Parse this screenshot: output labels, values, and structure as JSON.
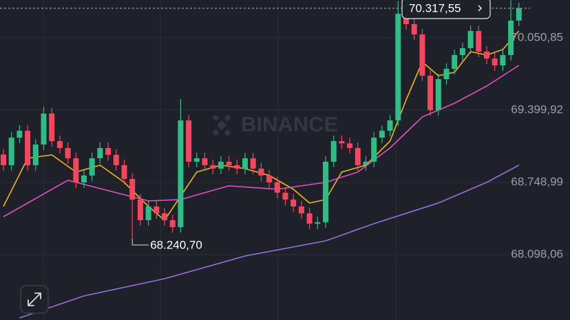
{
  "chart_data": {
    "type": "candlestick",
    "watermark": "BINANCE",
    "ylim": [
      67509.2,
      70391.9
    ],
    "yticks": [
      {
        "value": 70050.85,
        "label": "70.050,85"
      },
      {
        "value": 69399.92,
        "label": "69.399,92"
      },
      {
        "value": 68748.99,
        "label": "68.748,99"
      },
      {
        "value": 68098.06,
        "label": "68.098,06"
      }
    ],
    "grid": true,
    "up_color": "#2ebd85",
    "down_color": "#f6465d",
    "open": [
      69000,
      68904,
      69152,
      69214,
      68904,
      69090,
      69369,
      69121,
      69059,
      68966,
      68749,
      68811,
      68966,
      69059,
      68997,
      68904,
      68780,
      68594,
      68408,
      68532,
      68470,
      68408,
      68346,
      69307,
      68935,
      68966,
      68904,
      68873,
      68935,
      68904,
      68873,
      68966,
      68873,
      68811,
      68749,
      68656,
      68594,
      68532,
      68470,
      68377,
      68390,
      68935,
      69121,
      69100,
      69059,
      68904,
      68935,
      69152,
      69214,
      69307,
      70268,
      70175,
      70082,
      69710,
      69400,
      69679,
      69772,
      69896,
      69958,
      70113,
      69927,
      69865,
      69803,
      69896,
      70206
    ],
    "close": [
      68904,
      69152,
      69214,
      68904,
      69090,
      69369,
      69121,
      69059,
      68966,
      68749,
      68811,
      68966,
      69059,
      68997,
      68904,
      68780,
      68594,
      68408,
      68532,
      68470,
      68408,
      68346,
      69307,
      68935,
      68966,
      68904,
      68873,
      68935,
      68904,
      68873,
      68966,
      68873,
      68811,
      68749,
      68656,
      68594,
      68532,
      68470,
      68377,
      68390,
      68935,
      69121,
      69100,
      69059,
      68904,
      68935,
      69152,
      69214,
      69307,
      70268,
      70175,
      70082,
      69710,
      69400,
      69679,
      69772,
      69896,
      69958,
      70113,
      69927,
      69865,
      69803,
      69896,
      70206,
      70317.55
    ],
    "high": [
      69050,
      69202,
      69264,
      69264,
      69140,
      69430,
      69419,
      69171,
      69109,
      69016,
      68861,
      69016,
      69109,
      69109,
      69047,
      68954,
      68830,
      68644,
      68582,
      68582,
      68520,
      68458,
      69500,
      69357,
      69016,
      69016,
      68954,
      68985,
      68985,
      68954,
      69016,
      69016,
      68923,
      68861,
      68799,
      68706,
      68644,
      68582,
      68520,
      68440,
      68985,
      69171,
      69171,
      69150,
      69109,
      68985,
      69202,
      69264,
      69357,
      70380,
      70318,
      70225,
      70132,
      69760,
      69729,
      69822,
      69946,
      70008,
      70163,
      70163,
      69977,
      69915,
      69946,
      70390,
      70367
    ],
    "low": [
      68854,
      68854,
      69102,
      68854,
      68854,
      69040,
      69071,
      69009,
      68916,
      68699,
      68699,
      68761,
      68916,
      68947,
      68854,
      68730,
      68240.7,
      68358,
      68358,
      68420,
      68358,
      68296,
      68296,
      68885,
      68885,
      68854,
      68823,
      68823,
      68854,
      68823,
      68823,
      68823,
      68761,
      68699,
      68606,
      68544,
      68482,
      68420,
      68327,
      68327,
      68340,
      68885,
      69050,
      69009,
      68854,
      68854,
      68885,
      69102,
      69164,
      69257,
      70125,
      70032,
      69660,
      69350,
      69350,
      69629,
      69722,
      69846,
      69908,
      69877,
      69815,
      69753,
      69753,
      69846,
      70156
    ],
    "ma_lines": [
      {
        "color": "#f0b90b",
        "x": [
          0,
          3,
          6,
          9,
          12,
          15,
          18,
          20,
          22,
          24,
          27,
          30,
          33,
          36,
          38,
          40,
          42,
          45,
          48,
          50,
          52,
          54,
          56,
          58,
          60,
          62,
          64
        ],
        "values": [
          68532,
          68966,
          68997,
          68842,
          68904,
          68749,
          68532,
          68408,
          68625,
          68842,
          68904,
          68873,
          68811,
          68687,
          68563,
          68594,
          68842,
          68904,
          69121,
          69493,
          69834,
          69710,
          69741,
          69927,
          69896,
          69946,
          70113
        ]
      },
      {
        "color": "#e84fbf",
        "x": [
          0,
          8,
          14,
          18,
          22,
          28,
          34,
          40,
          44,
          48,
          52,
          56,
          60,
          64
        ],
        "values": [
          68439,
          68768,
          68656,
          68582,
          68594,
          68718,
          68687,
          68749,
          68842,
          69059,
          69338,
          69462,
          69617,
          69803
        ]
      },
      {
        "color": "#9b6fe0",
        "x": [
          2,
          10,
          20,
          30,
          40,
          46,
          54,
          60,
          64
        ],
        "values": [
          67528,
          67726,
          67881,
          68086,
          68222,
          68377,
          68563,
          68749,
          68904
        ]
      }
    ],
    "last_price": {
      "value": 70317.55,
      "label": "70.317,55"
    },
    "low_marker": {
      "value": 68240.7,
      "label": "68.240,70"
    }
  }
}
